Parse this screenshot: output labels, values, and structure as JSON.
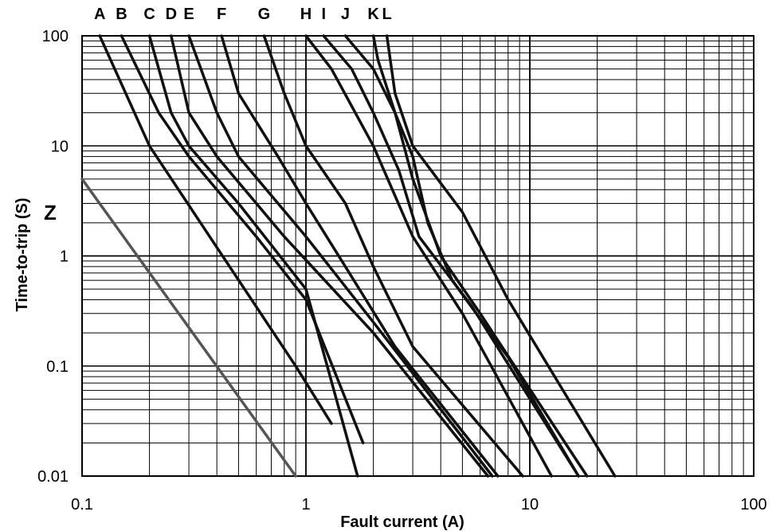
{
  "chart_data": {
    "type": "line",
    "x_scale": "log",
    "y_scale": "log",
    "xlim": [
      0.1,
      100
    ],
    "ylim": [
      0.01,
      100
    ],
    "xlabel": "Fault current (A)",
    "ylabel": "Time-to-trip (S)",
    "x_ticks": [
      "0.1",
      "1",
      "10",
      "100"
    ],
    "y_ticks": [
      "0.01",
      "0.1",
      "1",
      "10",
      "100"
    ],
    "grid": true,
    "label_curve": "Z",
    "series": [
      {
        "name": "Z",
        "color": "#555555",
        "points": [
          [
            0.1,
            5.0
          ],
          [
            0.9,
            0.01
          ]
        ]
      },
      {
        "name": "A",
        "color": "#111111",
        "points": [
          [
            0.12,
            100
          ],
          [
            0.2,
            10
          ],
          [
            0.9,
            0.1
          ],
          [
            1.3,
            0.03
          ]
        ]
      },
      {
        "name": "B",
        "color": "#111111",
        "points": [
          [
            0.15,
            100
          ],
          [
            0.22,
            20
          ],
          [
            0.3,
            8
          ],
          [
            0.6,
            1.5
          ],
          [
            1.0,
            0.4
          ],
          [
            1.8,
            0.02
          ]
        ]
      },
      {
        "name": "C",
        "color": "#111111",
        "points": [
          [
            0.2,
            100
          ],
          [
            0.25,
            20
          ],
          [
            0.3,
            10
          ],
          [
            0.5,
            3
          ],
          [
            1.0,
            0.5
          ],
          [
            1.7,
            0.01
          ]
        ]
      },
      {
        "name": "D",
        "color": "#111111",
        "points": [
          [
            0.25,
            100
          ],
          [
            0.3,
            20
          ],
          [
            0.4,
            8
          ],
          [
            0.8,
            1.5
          ],
          [
            2.0,
            0.2
          ],
          [
            6.5,
            0.01
          ]
        ]
      },
      {
        "name": "E",
        "color": "#111111",
        "points": [
          [
            0.3,
            100
          ],
          [
            0.4,
            20
          ],
          [
            0.5,
            8
          ],
          [
            1.0,
            1.5
          ],
          [
            2.0,
            0.25
          ],
          [
            6.8,
            0.01
          ]
        ]
      },
      {
        "name": "F",
        "color": "#111111",
        "points": [
          [
            0.42,
            100
          ],
          [
            0.5,
            30
          ],
          [
            0.75,
            8
          ],
          [
            1.0,
            3
          ],
          [
            1.5,
            0.8
          ],
          [
            2.5,
            0.15
          ],
          [
            7.2,
            0.01
          ]
        ]
      },
      {
        "name": "G",
        "color": "#111111",
        "points": [
          [
            0.65,
            100
          ],
          [
            0.8,
            30
          ],
          [
            1.0,
            10
          ],
          [
            1.5,
            3
          ],
          [
            2.0,
            0.8
          ],
          [
            3.0,
            0.15
          ],
          [
            9.3,
            0.01
          ]
        ]
      },
      {
        "name": "H",
        "color": "#111111",
        "points": [
          [
            1.0,
            100
          ],
          [
            1.3,
            50
          ],
          [
            2.0,
            10
          ],
          [
            3.0,
            1.5
          ],
          [
            5.0,
            0.3
          ],
          [
            12.5,
            0.01
          ]
        ]
      },
      {
        "name": "I",
        "color": "#111111",
        "points": [
          [
            1.2,
            100
          ],
          [
            1.6,
            50
          ],
          [
            2.0,
            20
          ],
          [
            2.6,
            6
          ],
          [
            3.2,
            1.5
          ],
          [
            5.5,
            0.35
          ],
          [
            16.5,
            0.01
          ]
        ]
      },
      {
        "name": "J",
        "color": "#111111",
        "points": [
          [
            1.5,
            100
          ],
          [
            2.0,
            50
          ],
          [
            2.5,
            20
          ],
          [
            3.0,
            5
          ],
          [
            4.0,
            1.0
          ],
          [
            6.0,
            0.3
          ],
          [
            18.0,
            0.01
          ]
        ]
      },
      {
        "name": "K",
        "color": "#111111",
        "points": [
          [
            2.0,
            100
          ],
          [
            2.1,
            60
          ],
          [
            2.5,
            20
          ],
          [
            3.0,
            8
          ],
          [
            3.5,
            2
          ],
          [
            4.5,
            0.6
          ],
          [
            8.0,
            0.12
          ],
          [
            16.5,
            0.01
          ]
        ]
      },
      {
        "name": "L",
        "color": "#111111",
        "points": [
          [
            2.3,
            100
          ],
          [
            2.5,
            30
          ],
          [
            3.0,
            10
          ],
          [
            5.0,
            2.5
          ],
          [
            8.0,
            0.4
          ],
          [
            24.0,
            0.01
          ]
        ]
      }
    ]
  }
}
